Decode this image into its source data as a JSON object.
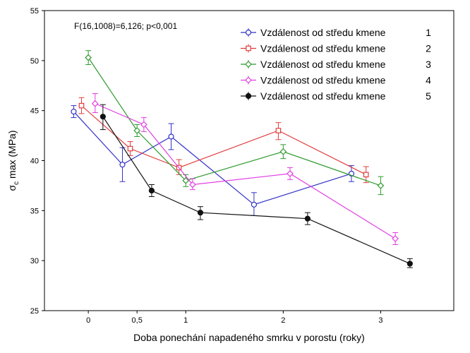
{
  "chart_data": {
    "type": "line",
    "annotation": "F(16,1008)=6,126; p<0,001",
    "xlabel": "Doba ponechání napadeného smrku v porostu (roky)",
    "ylabel_main": "σ",
    "ylabel_sub": "c",
    "ylabel_rest": " max (MPa)",
    "xlim": [
      -0.45,
      3.75
    ],
    "ylim": [
      25,
      55
    ],
    "xticks": [
      0,
      0.5,
      1,
      2,
      3
    ],
    "xtick_labels": [
      "0",
      "0,5",
      "1",
      "2",
      "3"
    ],
    "yticks": [
      25,
      30,
      35,
      40,
      45,
      50,
      55
    ],
    "ytick_labels": [
      "25",
      "30",
      "35",
      "40",
      "45",
      "50",
      "55"
    ],
    "grid": false,
    "legend_position": "top-right",
    "series": [
      {
        "name": "Vzdálenost od středu kmene",
        "legend_number": "1",
        "color": "#3232c8",
        "marker": "circle-open",
        "points": [
          {
            "x": -0.15,
            "y": 44.9,
            "lo": 44.3,
            "hi": 45.5
          },
          {
            "x": 0.35,
            "y": 39.6,
            "lo": 37.9,
            "hi": 41.3
          },
          {
            "x": 0.85,
            "y": 42.4,
            "lo": 41.1,
            "hi": 43.7
          },
          {
            "x": 1.7,
            "y": 35.6,
            "lo": 34.5,
            "hi": 36.8
          },
          {
            "x": 2.7,
            "y": 38.7,
            "lo": 37.9,
            "hi": 39.5
          }
        ]
      },
      {
        "name": "Vzdálenost od středu kmene",
        "legend_number": "2",
        "color": "#e03c3c",
        "marker": "square-open",
        "points": [
          {
            "x": -0.07,
            "y": 45.5,
            "lo": 44.7,
            "hi": 46.3
          },
          {
            "x": 0.43,
            "y": 41.2,
            "lo": 40.5,
            "hi": 41.9
          },
          {
            "x": 0.93,
            "y": 39.3,
            "lo": 38.6,
            "hi": 40.1
          },
          {
            "x": 1.95,
            "y": 43.0,
            "lo": 42.1,
            "hi": 43.8
          },
          {
            "x": 2.85,
            "y": 38.6,
            "lo": 37.8,
            "hi": 39.4
          }
        ]
      },
      {
        "name": "Vzdálenost od středu kmene",
        "legend_number": "3",
        "color": "#2f9a2f",
        "marker": "diamond-open",
        "points": [
          {
            "x": 0.0,
            "y": 50.3,
            "lo": 49.6,
            "hi": 51.0
          },
          {
            "x": 0.5,
            "y": 43.0,
            "lo": 42.4,
            "hi": 43.6
          },
          {
            "x": 1.0,
            "y": 38.0,
            "lo": 37.4,
            "hi": 38.6
          },
          {
            "x": 2.0,
            "y": 40.9,
            "lo": 40.2,
            "hi": 41.6
          },
          {
            "x": 3.0,
            "y": 37.5,
            "lo": 36.6,
            "hi": 38.4
          }
        ]
      },
      {
        "name": "Vzdálenost od středu kmene",
        "legend_number": "4",
        "color": "#e13ce1",
        "marker": "diamond-open",
        "points": [
          {
            "x": 0.07,
            "y": 45.7,
            "lo": 44.8,
            "hi": 46.7
          },
          {
            "x": 0.57,
            "y": 43.6,
            "lo": 42.9,
            "hi": 44.3
          },
          {
            "x": 1.07,
            "y": 37.6,
            "lo": 37.1,
            "hi": 38.2
          },
          {
            "x": 2.07,
            "y": 38.7,
            "lo": 38.1,
            "hi": 39.3
          },
          {
            "x": 3.15,
            "y": 32.2,
            "lo": 31.6,
            "hi": 32.8
          }
        ]
      },
      {
        "name": "Vzdálenost od středu kmene",
        "legend_number": "5",
        "color": "#111111",
        "marker": "circle-filled",
        "points": [
          {
            "x": 0.15,
            "y": 44.4,
            "lo": 43.1,
            "hi": 45.6
          },
          {
            "x": 0.65,
            "y": 37.0,
            "lo": 36.4,
            "hi": 37.6
          },
          {
            "x": 1.15,
            "y": 34.8,
            "lo": 34.1,
            "hi": 35.4
          },
          {
            "x": 2.25,
            "y": 34.2,
            "lo": 33.6,
            "hi": 34.8
          },
          {
            "x": 3.3,
            "y": 29.7,
            "lo": 29.3,
            "hi": 30.2
          }
        ]
      }
    ]
  }
}
